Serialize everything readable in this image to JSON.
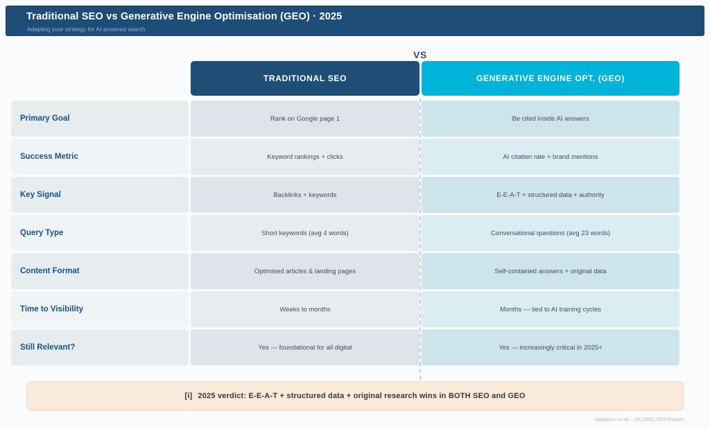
{
  "chart_data": {
    "type": "table",
    "title": "Traditional SEO vs Generative Engine Optimisation (GEO) · 2025",
    "subtitle": "Adapting your strategy for AI-powered search",
    "vs_label": "VS",
    "columns": [
      {
        "label": "TRADITIONAL SEO"
      },
      {
        "label": "GENERATIVE ENGINE OPT. (GEO)"
      }
    ],
    "rows": [
      {
        "label": "Primary Goal",
        "seo": "Rank on Google page 1",
        "geo": "Be cited inside AI answers"
      },
      {
        "label": "Success Metric",
        "seo": "Keyword rankings + clicks",
        "geo": "AI citation rate + brand mentions"
      },
      {
        "label": "Key Signal",
        "seo": "Backlinks + keywords",
        "geo": "E-E-A-T + structured data + authority"
      },
      {
        "label": "Query Type",
        "seo": "Short keywords (avg 4 words)",
        "geo": "Conversational questions (avg 23 words)"
      },
      {
        "label": "Content Format",
        "seo": "Optimised articles & landing pages",
        "geo": "Self-contained answers + original data"
      },
      {
        "label": "Time to Visibility",
        "seo": "Weeks to months",
        "geo": "Months — tied to AI training cycles"
      },
      {
        "label": "Still Relevant?",
        "seo": "Yes — foundational for all digital",
        "geo": "Yes — increasingly critical in 2025+"
      }
    ]
  },
  "verdict": {
    "icon": "[i]",
    "text": "2025 verdict: E-E-A-T + structured data + original research wins in BOTH SEO and GEO"
  },
  "footer": {
    "credit": "digiactus.co.uk · UK SEO 2025 Report"
  },
  "colors": {
    "navy": "#1e4e78",
    "cyan": "#00b3d8",
    "label_blue": "#16538c",
    "verdict_bg": "#faeada",
    "verdict_border": "#eed8bf"
  }
}
